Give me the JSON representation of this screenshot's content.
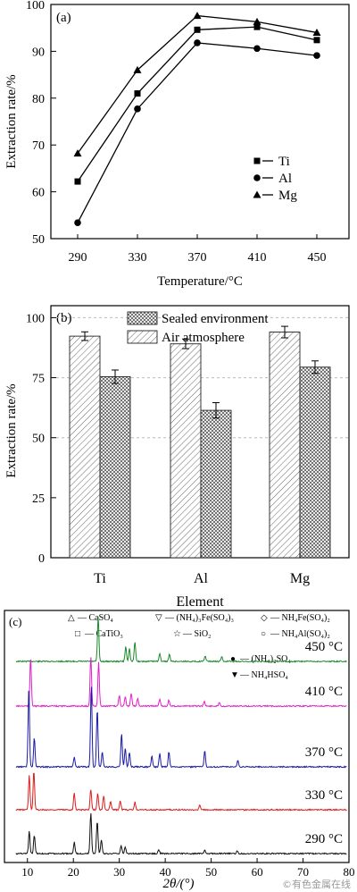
{
  "panels": [
    {
      "label": "(a)",
      "chart_data": {
        "type": "line",
        "x": [
          290,
          330,
          370,
          410,
          450
        ],
        "xlabel": "Temperature/°C",
        "ylabel": "Extraction rate/%",
        "ylim": [
          50,
          100
        ],
        "xticks": [
          "290",
          "330",
          "370",
          "410",
          "450"
        ],
        "yticks": [
          "50",
          "60",
          "70",
          "80",
          "90",
          "100"
        ],
        "grid": false,
        "legend_position": "bottom-right",
        "series": [
          {
            "name": "Ti",
            "marker": "square",
            "values": [
              62.2,
              81.0,
              94.6,
              95.2,
              92.4
            ]
          },
          {
            "name": "Al",
            "marker": "circle",
            "values": [
              53.4,
              77.7,
              91.8,
              90.6,
              89.1
            ]
          },
          {
            "name": "Mg",
            "marker": "triangle",
            "values": [
              68.2,
              86.0,
              97.6,
              96.3,
              94.0
            ]
          }
        ]
      }
    },
    {
      "label": "(b)",
      "chart_data": {
        "type": "bar",
        "categories": [
          "Ti",
          "Al",
          "Mg"
        ],
        "xlabel": "Element",
        "ylabel": "Extraction rate/%",
        "ylim": [
          0,
          105
        ],
        "yticks": [
          "0",
          "25",
          "50",
          "75",
          "100"
        ],
        "grid": "dashed horizontal at 50, 75, 100",
        "legend_position": "top-center",
        "series": [
          {
            "name": "Air atmosphere",
            "pattern": "diagonal-hatch",
            "values": [
              92.3,
              89.1,
              94.0
            ],
            "errors": [
              1.8,
              2.0,
              2.4
            ]
          },
          {
            "name": "Sealed environment",
            "pattern": "cross-hatch",
            "values": [
              75.4,
              61.4,
              79.4
            ],
            "errors": [
              2.8,
              3.2,
              2.6
            ]
          }
        ]
      }
    },
    {
      "label": "(c)",
      "chart_data": {
        "type": "line",
        "xlabel": "2θ/(°)",
        "xlim": [
          5,
          80
        ],
        "xticks": [
          "10",
          "20",
          "30",
          "40",
          "50",
          "60",
          "70",
          "80"
        ],
        "series": [
          {
            "name": "450 °C",
            "color": "#1a8a2a",
            "peaks": [
              [
                25.4,
                0.97
              ],
              [
                31.4,
                0.32
              ],
              [
                32.2,
                0.28
              ],
              [
                33.4,
                0.42
              ],
              [
                38.8,
                0.18
              ],
              [
                40.9,
                0.15
              ],
              [
                48.7,
                0.12
              ],
              [
                52.3,
                0.1
              ]
            ]
          },
          {
            "name": "410 °C",
            "color": "#e020c8",
            "peaks": [
              [
                10.7,
                0.98
              ],
              [
                23.8,
                1.0
              ],
              [
                25.5,
                0.9
              ],
              [
                30.0,
                0.22
              ],
              [
                31.3,
                0.2
              ],
              [
                32.6,
                0.25
              ],
              [
                34.0,
                0.16
              ],
              [
                38.8,
                0.14
              ],
              [
                40.8,
                0.12
              ],
              [
                48.5,
                0.1
              ],
              [
                51.8,
                0.08
              ]
            ]
          },
          {
            "name": "370 °C",
            "color": "#1a1aa8",
            "peaks": [
              [
                10.3,
                0.95
              ],
              [
                11.5,
                0.35
              ],
              [
                20.2,
                0.12
              ],
              [
                23.9,
                1.0
              ],
              [
                25.2,
                0.7
              ],
              [
                26.3,
                0.18
              ],
              [
                30.5,
                0.4
              ],
              [
                31.3,
                0.22
              ],
              [
                32.2,
                0.18
              ],
              [
                37.1,
                0.14
              ],
              [
                38.8,
                0.16
              ],
              [
                40.8,
                0.18
              ],
              [
                48.6,
                0.2
              ],
              [
                55.8,
                0.08
              ]
            ]
          },
          {
            "name": "330 °C",
            "color": "#dd1c1c",
            "peaks": [
              [
                10.4,
                0.8
              ],
              [
                11.4,
                0.92
              ],
              [
                20.2,
                0.4
              ],
              [
                23.8,
                0.48
              ],
              [
                25.3,
                0.38
              ],
              [
                26.6,
                0.32
              ],
              [
                28.1,
                0.2
              ],
              [
                30.2,
                0.22
              ],
              [
                33.4,
                0.18
              ],
              [
                47.5,
                0.1
              ]
            ]
          },
          {
            "name": "290 °C",
            "color": "#111111",
            "peaks": [
              [
                10.4,
                0.55
              ],
              [
                11.5,
                0.45
              ],
              [
                20.2,
                0.28
              ],
              [
                23.8,
                1.0
              ],
              [
                25.2,
                0.82
              ],
              [
                26.1,
                0.35
              ],
              [
                30.4,
                0.2
              ],
              [
                31.3,
                0.16
              ],
              [
                38.6,
                0.1
              ],
              [
                48.6,
                0.08
              ],
              [
                55.7,
                0.06
              ]
            ]
          }
        ],
        "legend": [
          {
            "symbol": "△",
            "text": "CaSO₄"
          },
          {
            "symbol": "▽",
            "text": "(NH₄)₃Fe(SO₄)₃"
          },
          {
            "symbol": "◇",
            "text": "NH₄Fe(SO₄)₂"
          },
          {
            "symbol": "□",
            "text": "CaTiO₃"
          },
          {
            "symbol": "☆",
            "text": "SiO₂"
          },
          {
            "symbol": "○",
            "text": "NH₄Al(SO₄)₂"
          },
          {
            "symbol": "●",
            "text": "(NH₄)₂SO₄"
          },
          {
            "symbol": "▼",
            "text": "NH₄HSO₄"
          }
        ]
      }
    }
  ],
  "watermark": "©有色金属在线"
}
